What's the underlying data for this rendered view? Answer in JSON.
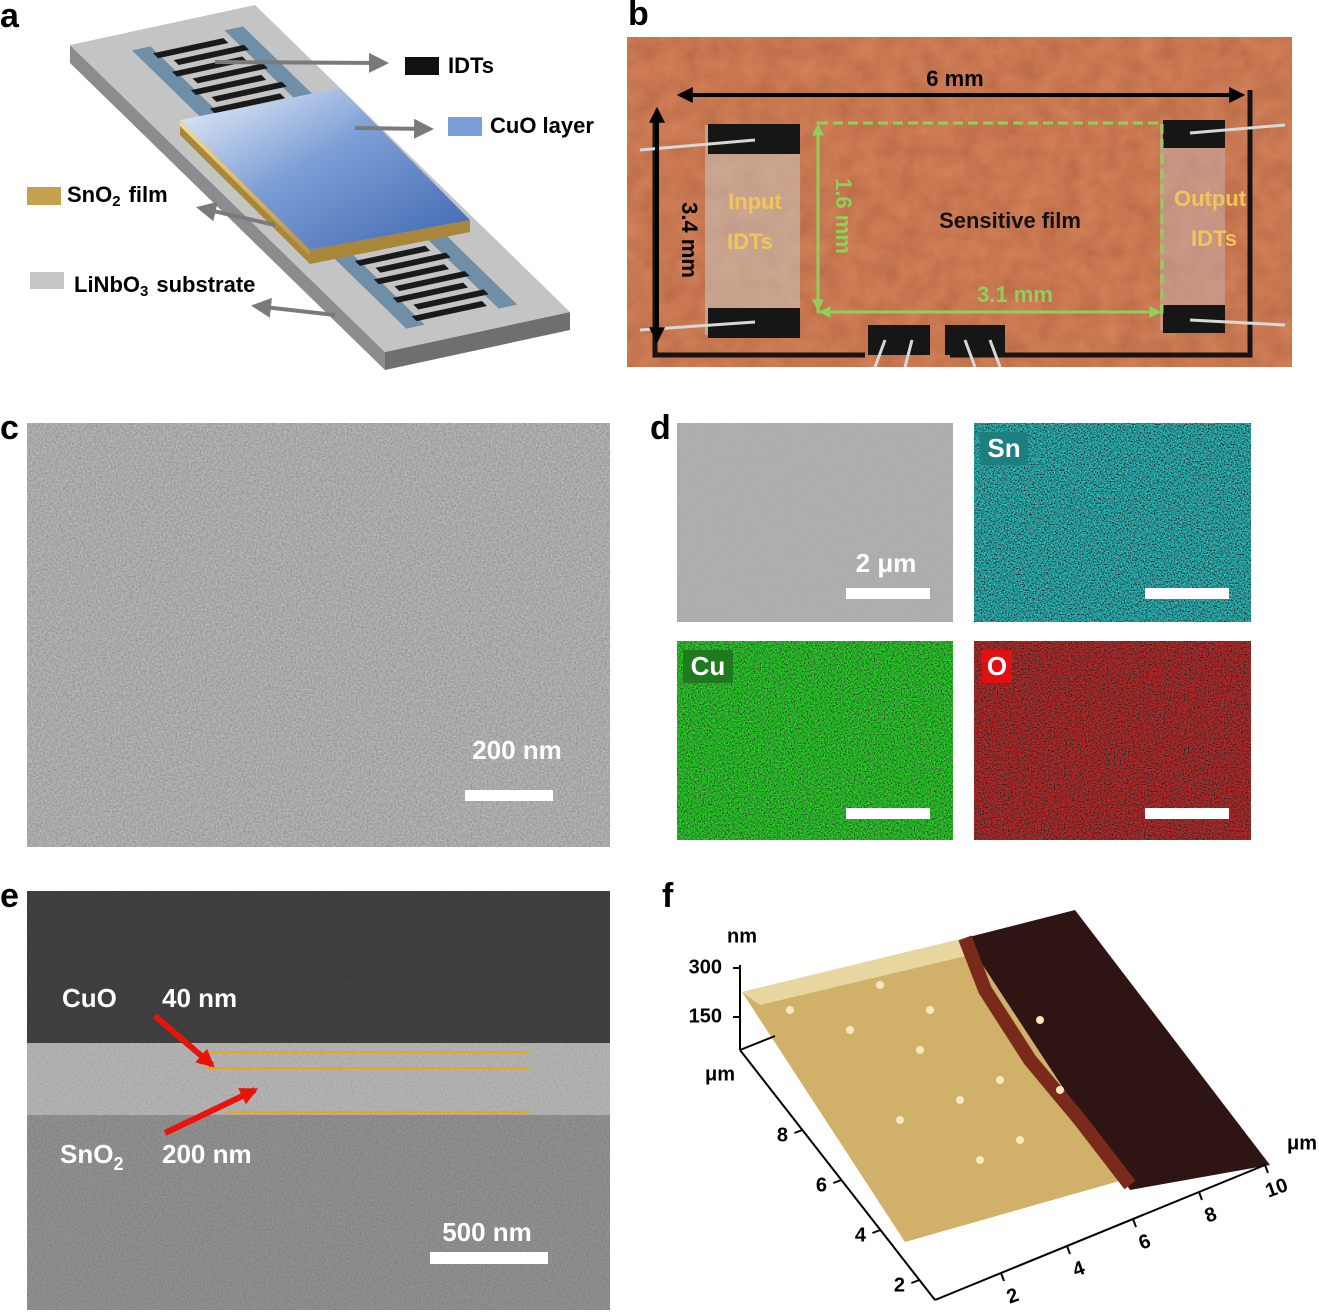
{
  "panels": {
    "a": {
      "label": "a",
      "idts": "IDTs",
      "cuo": "CuO layer",
      "sno2": {
        "main": "SnO",
        "sub": "2",
        "rest": "film"
      },
      "linbo3": {
        "main": "LiNbO",
        "sub": "3",
        "rest": "substrate"
      }
    },
    "b": {
      "label": "b",
      "width": "6 mm",
      "height": "3.4 mm",
      "film_height": "1.6 mm",
      "film_width": "3.1 mm",
      "input": [
        "Input",
        "IDTs"
      ],
      "film": "Sensitive film",
      "output": [
        "Output",
        "IDTs"
      ]
    },
    "c": {
      "label": "c",
      "scale": "200 nm"
    },
    "d": {
      "label": "d",
      "scale": "2 μm",
      "maps": [
        "Sn",
        "Cu",
        "O"
      ]
    },
    "e": {
      "label": "e",
      "cuo": "CuO",
      "cuo_thickness": "40 nm",
      "sno2": {
        "main": "SnO",
        "sub": "2"
      },
      "sno2_thickness": "200 nm",
      "scale": "500 nm"
    },
    "f": {
      "label": "f",
      "z_unit": "nm",
      "z_ticks": [
        300,
        150
      ],
      "y_unit": "μm",
      "y_ticks": [
        8,
        6,
        4,
        2
      ],
      "x_unit": "μm",
      "x_ticks": [
        2,
        4,
        6,
        8,
        10
      ]
    }
  }
}
